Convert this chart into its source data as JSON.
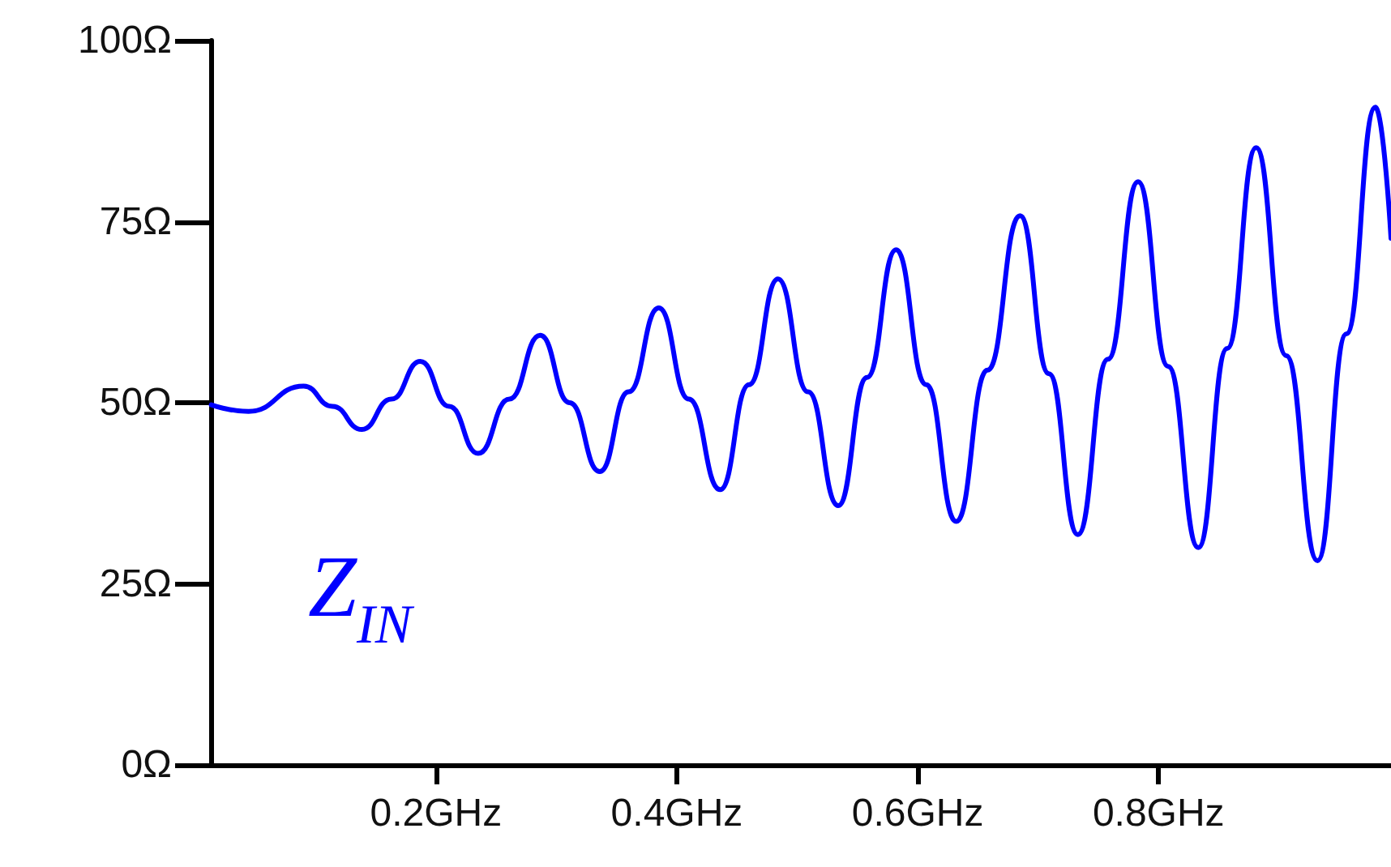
{
  "chart_data": {
    "type": "line",
    "xlim": [
      0.013,
      0.993
    ],
    "xticks": [
      {
        "value": 0.2,
        "label": "0.2GHz"
      },
      {
        "value": 0.4,
        "label": "0.4GHz"
      },
      {
        "value": 0.6,
        "label": "0.6GHz"
      },
      {
        "value": 0.8,
        "label": "0.8GHz"
      }
    ],
    "ylim": [
      0,
      100
    ],
    "yticks": [
      {
        "value": 0,
        "label": "0Ω"
      },
      {
        "value": 25,
        "label": "25Ω"
      },
      {
        "value": 50,
        "label": "50Ω"
      },
      {
        "value": 75,
        "label": "75Ω"
      },
      {
        "value": 100,
        "label": "100Ω"
      }
    ],
    "series": [
      {
        "name": "Z$_{IN}$",
        "color": "#0000ff",
        "x": [
          0.0134,
          0.0444,
          0.0901,
          0.114,
          0.1385,
          0.163,
          0.187,
          0.211,
          0.235,
          0.261,
          0.2865,
          0.311,
          0.336,
          0.36,
          0.385,
          0.41,
          0.436,
          0.46,
          0.484,
          0.509,
          0.534,
          0.558,
          0.582,
          0.607,
          0.632,
          0.658,
          0.685,
          0.709,
          0.733,
          0.758,
          0.783,
          0.808,
          0.833,
          0.857,
          0.881,
          0.906,
          0.932,
          0.956,
          0.98,
          0.993
        ],
        "values": [
          49.7,
          48.8,
          52.3,
          49.5,
          46.3,
          50.5,
          55.7,
          49.5,
          43,
          50.5,
          59.3,
          50,
          40.5,
          51.5,
          63.1,
          50.5,
          38,
          52.5,
          67.1,
          51.5,
          35.8,
          53.5,
          71.1,
          52.5,
          33.6,
          54.5,
          75.8,
          54,
          31.8,
          56,
          80.5,
          55,
          30,
          57.5,
          85.2,
          56.5,
          28.2,
          59.5,
          90.8,
          72.7
        ]
      }
    ],
    "grid": false,
    "legend": false,
    "marker": "none",
    "line_style": "solid"
  }
}
